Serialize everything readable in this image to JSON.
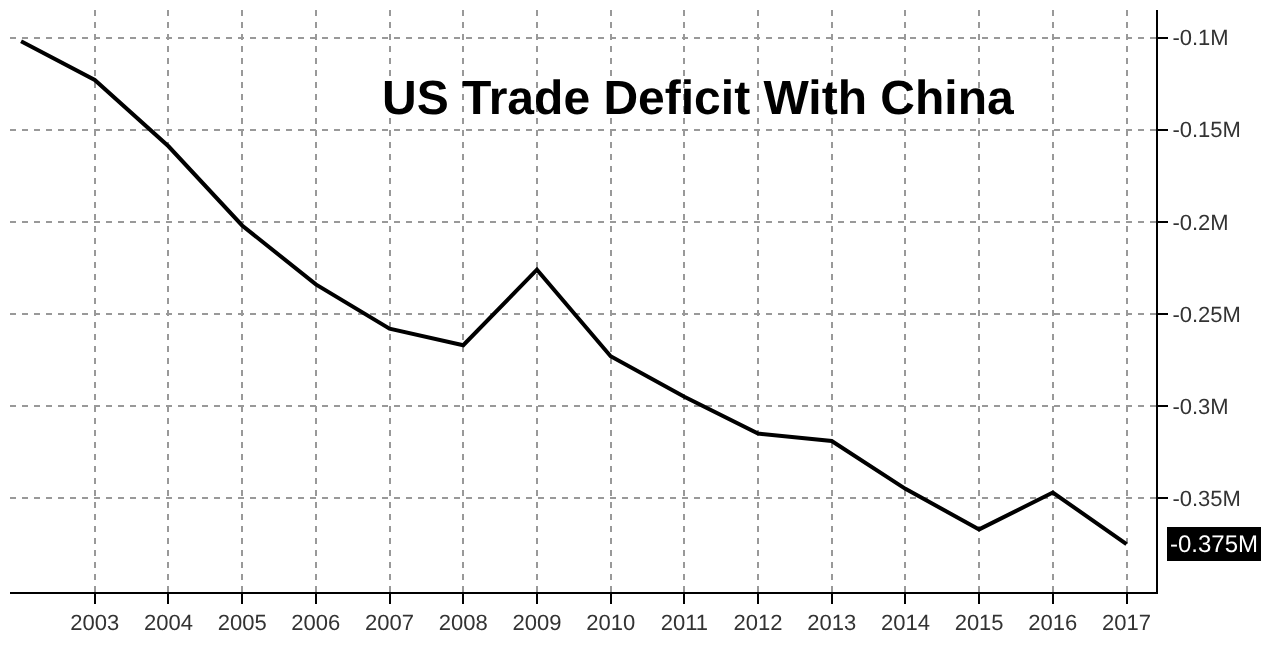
{
  "chart_data": {
    "type": "line",
    "title": "US Trade Deficit With China",
    "x": [
      2002,
      2003,
      2004,
      2005,
      2006,
      2007,
      2008,
      2009,
      2010,
      2011,
      2012,
      2013,
      2014,
      2015,
      2016,
      2017
    ],
    "series": [
      {
        "color": "#000000",
        "values": [
          -0.102,
          -0.123,
          -0.159,
          -0.202,
          -0.234,
          -0.258,
          -0.267,
          -0.226,
          -0.273,
          -0.295,
          -0.315,
          -0.319,
          -0.345,
          -0.367,
          -0.347,
          -0.375
        ]
      }
    ],
    "xlim": [
      2001.85,
      2017.4
    ],
    "xticks": [
      2003,
      2004,
      2005,
      2006,
      2007,
      2008,
      2009,
      2010,
      2011,
      2012,
      2013,
      2014,
      2015,
      2016,
      2017
    ],
    "ylim": [
      -0.401,
      -0.085
    ],
    "yticks": [
      {
        "value": -0.1,
        "label": "-0.1M"
      },
      {
        "value": -0.15,
        "label": "-0.15M"
      },
      {
        "value": -0.2,
        "label": "-0.2M"
      },
      {
        "value": -0.25,
        "label": "-0.25M"
      },
      {
        "value": -0.3,
        "label": "-0.3M"
      },
      {
        "value": -0.35,
        "label": "-0.35M"
      }
    ],
    "annotations": [
      {
        "text": "-0.375M",
        "x": 2017,
        "y": -0.375
      }
    ],
    "grid": true,
    "legend": false,
    "marker": "none",
    "line_style": "solid"
  }
}
